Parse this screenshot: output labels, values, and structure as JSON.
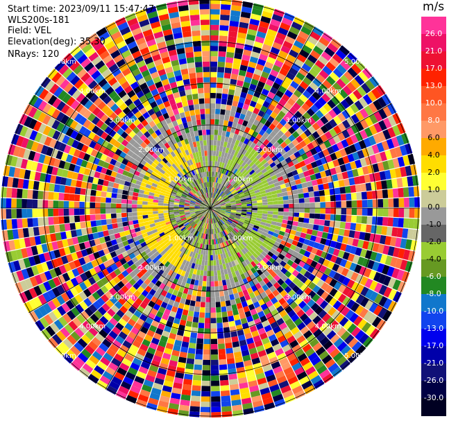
{
  "info": {
    "start_time": "Start time: 2023/09/11 15:47:47",
    "instrument": "WLS200s-181",
    "field": "Field: VEL",
    "elevation": "Elevation(deg): 35.30",
    "nrays": "NRays: 120"
  },
  "colorbar": {
    "unit": "m/s",
    "ticks": [
      "26.0",
      "21.0",
      "17.0",
      "13.0",
      "10.0",
      "8.0",
      "6.0",
      "4.0",
      "2.0",
      "1.0",
      "0.0",
      "-1.0",
      "-2.0",
      "-4.0",
      "-6.0",
      "-8.0",
      "-10.0",
      "-13.0",
      "-17.0",
      "-21.0",
      "-26.0",
      "-30.0"
    ],
    "colors": [
      "#ff3399",
      "#ee1166",
      "#ee1133",
      "#ff2200",
      "#ff5522",
      "#ff7744",
      "#ff9966",
      "#ffaa00",
      "#ffdd00",
      "#ffff33",
      "#cccc99",
      "#999999",
      "#666666",
      "#99cc33",
      "#669922",
      "#228822",
      "#1177cc",
      "#1144ee",
      "#0000ee",
      "#0000aa",
      "#111177",
      "#000044",
      "#000022"
    ]
  },
  "range_rings": {
    "labels": [
      "1.00km",
      "2.00km",
      "3.00km",
      "4.00km",
      "5.00km"
    ]
  }
}
